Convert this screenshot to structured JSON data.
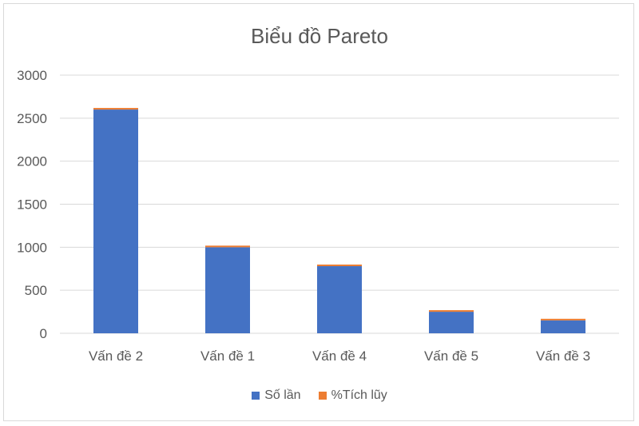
{
  "chart_data": {
    "type": "bar",
    "title": "Biểu đồ Pareto",
    "categories": [
      "Vấn đề 2",
      "Vấn đề 1",
      "Vấn đề 4",
      "Vấn đề 5",
      "Vấn đề 3"
    ],
    "series": [
      {
        "name": "Số lần",
        "values": [
          2600,
          1000,
          780,
          250,
          150
        ],
        "color": "#4472c4"
      },
      {
        "name": "%Tích lũy",
        "values": [
          0.55,
          0.76,
          0.92,
          0.97,
          1.0
        ],
        "color": "#ed7d31"
      }
    ],
    "stacked": true,
    "ylim": [
      0,
      3000
    ],
    "yticks": [
      0,
      500,
      1000,
      1500,
      2000,
      2500,
      3000
    ],
    "grid": true,
    "legend": "bottom"
  }
}
